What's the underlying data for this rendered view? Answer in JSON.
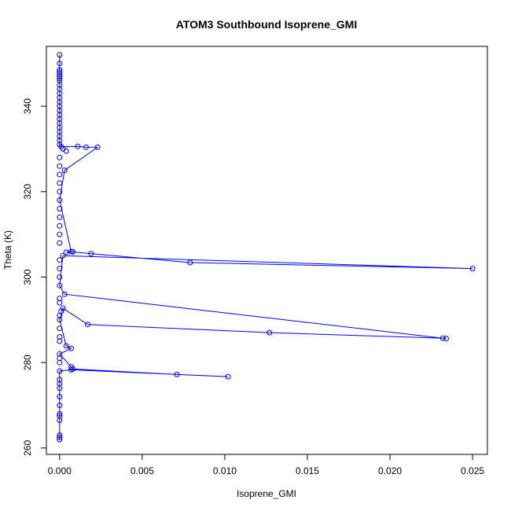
{
  "chart_data": {
    "type": "scatter",
    "title": "ATOM3 Southbound Isoprene_GMI",
    "xlabel": "Isoprene_GMI",
    "ylabel": "Theta (K)",
    "xlim": [
      -0.0008,
      0.0259
    ],
    "ylim": [
      258.5,
      354
    ],
    "x_ticks": [
      0.0,
      0.005,
      0.01,
      0.015,
      0.02,
      0.025
    ],
    "x_tick_labels": [
      "0.000",
      "0.005",
      "0.010",
      "0.015",
      "0.020",
      "0.025"
    ],
    "y_ticks": [
      260,
      280,
      300,
      320,
      340
    ],
    "y_tick_labels": [
      "260",
      "280",
      "300",
      "320",
      "340"
    ],
    "grid": false,
    "legend": "none",
    "series": [
      {
        "color": "#0000ff",
        "marker": "open-circle",
        "line": true,
        "points": [
          [
            0.0,
            352.0
          ],
          [
            0.0,
            350.0
          ],
          [
            0.0,
            348.5
          ],
          [
            0.0,
            348.0
          ],
          [
            0.0,
            347.5
          ],
          [
            0.0,
            347.0
          ],
          [
            0.0,
            346.5
          ],
          [
            0.0,
            346.0
          ],
          [
            0.0,
            345.0
          ],
          [
            0.0,
            344.0
          ],
          [
            0.0,
            343.0
          ],
          [
            0.0,
            342.0
          ],
          [
            0.0,
            341.0
          ],
          [
            0.0,
            340.0
          ],
          [
            0.0,
            339.0
          ],
          [
            0.0,
            338.0
          ],
          [
            0.0,
            337.0
          ],
          [
            0.0,
            336.0
          ],
          [
            0.0,
            335.0
          ],
          [
            0.0,
            334.0
          ],
          [
            0.0,
            333.0
          ],
          [
            0.0,
            332.0
          ],
          [
            0.0,
            331.0
          ],
          [
            0.0001,
            330.5
          ],
          [
            0.0004,
            329.5
          ],
          [
            0.0002,
            330.0
          ],
          [
            0.0011,
            330.6
          ],
          [
            0.0016,
            330.4
          ],
          [
            0.0023,
            330.4
          ],
          [
            0.0003,
            325.0
          ],
          [
            0.0,
            328.0
          ],
          [
            0.0,
            326.0
          ],
          [
            0.0,
            324.0
          ],
          [
            0.0,
            322.0
          ],
          [
            0.0,
            320.0
          ],
          [
            0.0,
            318.0
          ],
          [
            0.0,
            316.0
          ],
          [
            0.0,
            314.0
          ],
          [
            0.0,
            312.0
          ],
          [
            0.0,
            310.0
          ],
          [
            0.0,
            308.0
          ],
          [
            0.0007,
            306.0
          ],
          [
            0.0004,
            305.8
          ],
          [
            0.0008,
            305.9
          ],
          [
            0.0019,
            305.5
          ],
          [
            0.0079,
            303.4
          ],
          [
            0.025,
            302.0
          ],
          [
            0.0002,
            305.0
          ],
          [
            0.0,
            304.0
          ],
          [
            0.0,
            302.0
          ],
          [
            0.0,
            300.0
          ],
          [
            0.0,
            298.0
          ],
          [
            0.0003,
            296.0
          ],
          [
            0.0234,
            285.6
          ],
          [
            0.0,
            295.0
          ],
          [
            0.0,
            294.0
          ],
          [
            0.0002,
            292.7
          ],
          [
            0.0001,
            292.0
          ],
          [
            0.0,
            291.0
          ],
          [
            0.0,
            290.0
          ],
          [
            0.0017,
            288.9
          ],
          [
            0.0127,
            287.0
          ],
          [
            0.0232,
            285.7
          ],
          [
            0.0,
            288.0
          ],
          [
            0.0,
            286.0
          ],
          [
            0.0,
            285.0
          ],
          [
            0.0004,
            283.9
          ],
          [
            0.0007,
            283.3
          ],
          [
            0.0,
            282.0
          ],
          [
            0.0,
            281.0
          ],
          [
            0.0,
            280.0
          ],
          [
            0.0007,
            279.0
          ],
          [
            0.0008,
            278.5
          ],
          [
            0.0071,
            277.2
          ],
          [
            0.0102,
            276.7
          ],
          [
            0.0007,
            278.3
          ],
          [
            0.0,
            278.0
          ],
          [
            0.0,
            276.0
          ],
          [
            0.0,
            275.0
          ],
          [
            0.0,
            274.0
          ],
          [
            0.0,
            272.0
          ],
          [
            0.0,
            270.0
          ],
          [
            0.0,
            268.0
          ],
          [
            0.0,
            267.5
          ],
          [
            0.0,
            266.5
          ],
          [
            0.0,
            263.0
          ],
          [
            0.0,
            262.5
          ],
          [
            0.0,
            262.0
          ]
        ],
        "path": [
          [
            0.0,
            352.0
          ],
          [
            0.0,
            331.0
          ],
          [
            0.0001,
            330.5
          ],
          [
            0.0011,
            330.6
          ],
          [
            0.0016,
            330.4
          ],
          [
            0.0023,
            330.4
          ],
          [
            0.0003,
            325.0
          ],
          [
            0.0,
            318.0
          ],
          [
            0.0007,
            306.0
          ],
          [
            0.0004,
            305.8
          ],
          [
            0.0008,
            305.9
          ],
          [
            0.0019,
            305.5
          ],
          [
            0.0079,
            303.4
          ],
          [
            0.025,
            302.0
          ],
          [
            0.0002,
            305.0
          ],
          [
            0.0,
            298.0
          ],
          [
            0.0003,
            296.0
          ],
          [
            0.0234,
            285.6
          ],
          [
            0.0232,
            285.7
          ],
          [
            0.0127,
            287.0
          ],
          [
            0.0017,
            288.9
          ],
          [
            0.0002,
            292.7
          ],
          [
            0.0,
            290.0
          ],
          [
            0.0004,
            283.9
          ],
          [
            0.0007,
            283.3
          ],
          [
            0.0,
            282.0
          ],
          [
            0.0007,
            279.0
          ],
          [
            0.0008,
            278.5
          ],
          [
            0.0071,
            277.2
          ],
          [
            0.0102,
            276.7
          ],
          [
            0.0007,
            278.3
          ],
          [
            0.0,
            278.0
          ],
          [
            0.0,
            262.0
          ]
        ]
      }
    ]
  }
}
